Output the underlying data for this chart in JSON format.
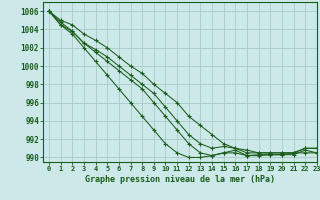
{
  "title": "Graphe pression niveau de la mer (hPa)",
  "background_color": "#cce8e8",
  "grid_color": "#aacaca",
  "line_color": "#1a5c1a",
  "xlim": [
    -0.5,
    23
  ],
  "ylim": [
    989.5,
    1007
  ],
  "yticks": [
    990,
    992,
    994,
    996,
    998,
    1000,
    1002,
    1004,
    1006
  ],
  "xticks": [
    0,
    1,
    2,
    3,
    4,
    5,
    6,
    7,
    8,
    9,
    10,
    11,
    12,
    13,
    14,
    15,
    16,
    17,
    18,
    19,
    20,
    21,
    22,
    23
  ],
  "series": [
    [
      1006,
      1005,
      1004.5,
      1003.5,
      1002.8,
      1002,
      1001,
      1000,
      999.2,
      998,
      997,
      996,
      994.5,
      993.5,
      992.5,
      991.5,
      991,
      990.8,
      990.5,
      990.5,
      990.5,
      990.5,
      991,
      991
    ],
    [
      1006,
      1004.8,
      1003.8,
      1002.5,
      1001.5,
      1000.5,
      999.5,
      998.5,
      997.5,
      996,
      994.5,
      993,
      991.5,
      990.5,
      990.2,
      990.5,
      990.5,
      990.2,
      990.3,
      990.3,
      990.3,
      990.5,
      990.5,
      990.5
    ],
    [
      1006,
      1004.5,
      1003.8,
      1002.5,
      1001.8,
      1001,
      1000,
      999,
      998,
      997,
      995.5,
      994,
      992.5,
      991.5,
      991,
      991.2,
      991,
      990.5,
      990.5,
      990.5,
      990.5,
      990.5,
      991,
      991
    ],
    [
      1006,
      1004.5,
      1003.5,
      1002,
      1000.5,
      999,
      997.5,
      996,
      994.5,
      993,
      991.5,
      990.5,
      990,
      990,
      990.2,
      990.5,
      990.8,
      990.2,
      990.2,
      990.3,
      990.3,
      990.3,
      990.8,
      990.5
    ]
  ]
}
